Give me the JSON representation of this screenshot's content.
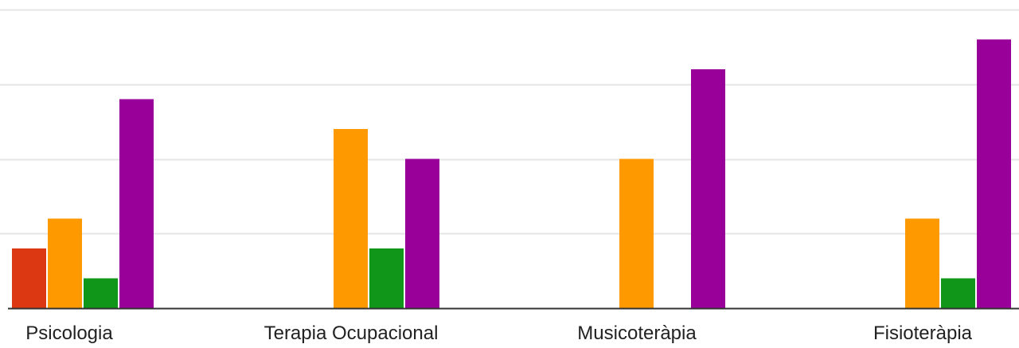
{
  "chart_data": {
    "type": "bar",
    "categories": [
      "Psicologia",
      "Terapia Ocupacional",
      "Musicoteràpia",
      "Fisioteràpia"
    ],
    "series": [
      {
        "color": "#dc3912",
        "values": [
          2,
          0,
          0,
          0
        ]
      },
      {
        "color": "#ff9900",
        "values": [
          3,
          6,
          5,
          3
        ]
      },
      {
        "color": "#109618",
        "values": [
          1,
          2,
          0,
          1
        ]
      },
      {
        "color": "#990099",
        "values": [
          7,
          5,
          8,
          9
        ]
      }
    ],
    "ylim": [
      0,
      10
    ],
    "grid": true,
    "gridline_color": "#e5e5e5",
    "axis_color": "#333333"
  }
}
